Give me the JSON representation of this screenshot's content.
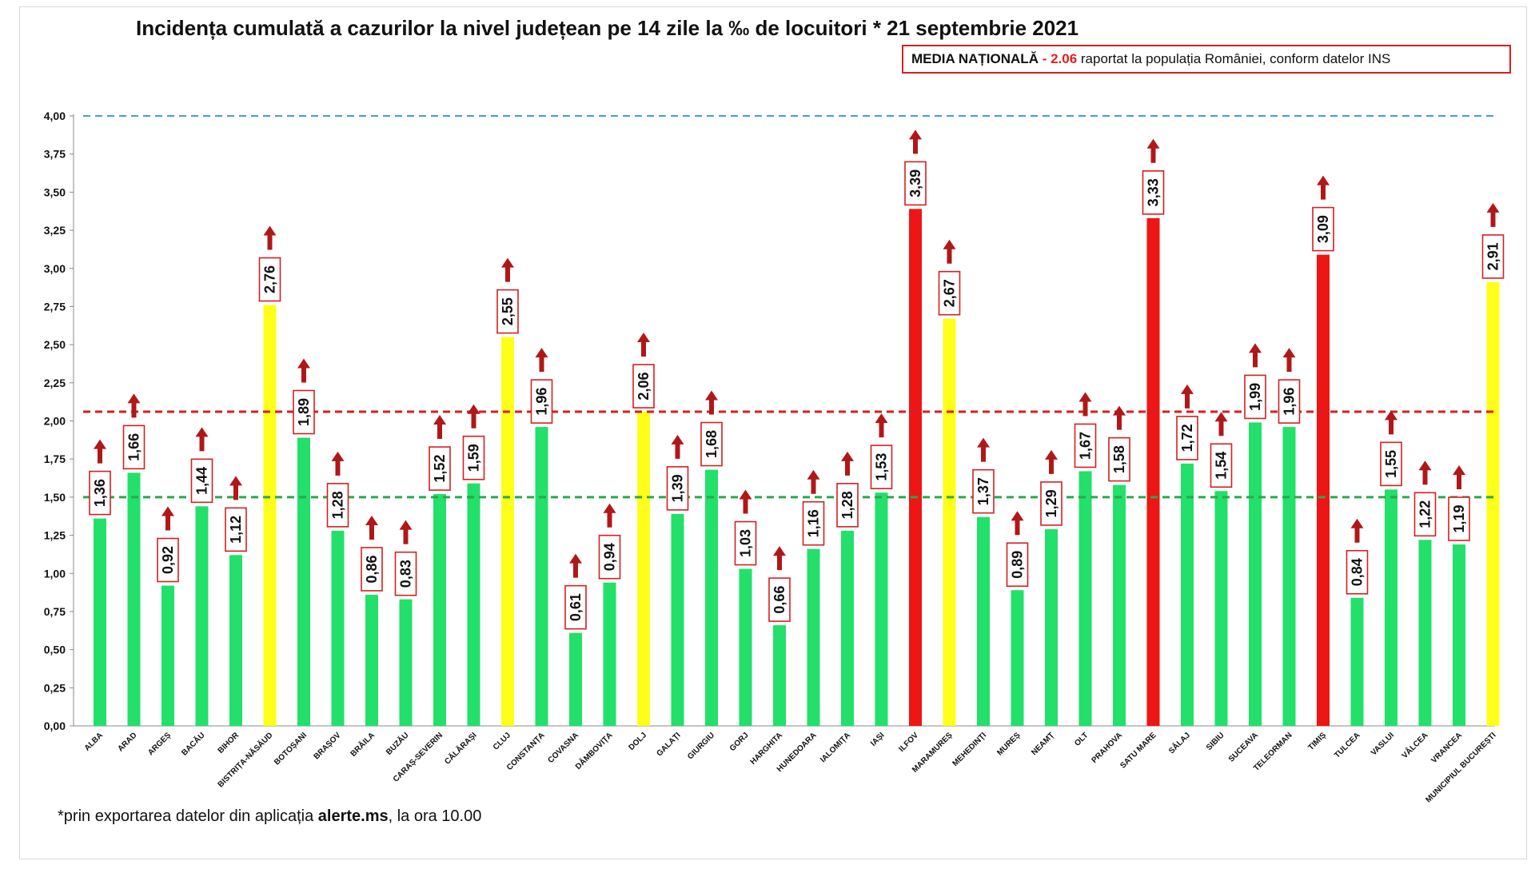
{
  "header": {
    "title": "Incidența cumulată a cazurilor la nivel județean pe 14 zile la ‰ de locuitori * 21 septembrie 2021"
  },
  "media": {
    "label": "MEDIA NAȚIONALĂ",
    "dash": " - ",
    "value": "2.06",
    "note": " raportat la populația României, conform datelor INS"
  },
  "footnote": {
    "text_before": "*prin exportarea datelor din aplicația ",
    "app": "alerte.ms",
    "text_after": ", la ora 10.00"
  },
  "colors": {
    "green": "#22e06a",
    "yellow": "#ffff19",
    "red": "#ee1515",
    "arrow": "#b01818",
    "label_border": "#d42020",
    "line_blue": "#4a9ad8",
    "line_red": "#d42020",
    "line_green": "#2aa84a"
  },
  "chart_data": {
    "type": "bar",
    "title": "Incidența cumulată a cazurilor la nivel județean pe 14 zile la ‰ de locuitori * 21 septembrie 2021",
    "ylim": [
      0,
      4
    ],
    "yticks": [
      "0,00",
      "0,25",
      "0,50",
      "0,75",
      "1,00",
      "1,25",
      "1,50",
      "1,75",
      "2,00",
      "2,25",
      "2,50",
      "2,75",
      "3,00",
      "3,25",
      "3,50",
      "3,75",
      "4,00"
    ],
    "reference_lines": [
      {
        "value": 4.0,
        "color": "blue",
        "style": "dashed"
      },
      {
        "value": 2.06,
        "color": "red",
        "style": "dashed"
      },
      {
        "value": 1.5,
        "color": "green",
        "style": "dashed"
      }
    ],
    "categories": [
      "ALBA",
      "ARAD",
      "ARGEȘ",
      "BACĂU",
      "BIHOR",
      "BISTRIȚA-NĂSĂUD",
      "BOTOȘANI",
      "BRAȘOV",
      "BRĂILA",
      "BUZĂU",
      "CARAȘ-SEVERIN",
      "CĂLĂRAȘI",
      "CLUJ",
      "CONSTANȚA",
      "COVASNA",
      "DÂMBOVIȚA",
      "DOLJ",
      "GALAȚI",
      "GIURGIU",
      "GORJ",
      "HARGHITA",
      "HUNEDOARA",
      "IALOMIȚA",
      "IAȘI",
      "ILFOV",
      "MARAMUREȘ",
      "MEHEDINȚI",
      "MUREȘ",
      "NEAMȚ",
      "OLT",
      "PRAHOVA",
      "SATU MARE",
      "SĂLAJ",
      "SIBIU",
      "SUCEAVA",
      "TELEORMAN",
      "TIMIȘ",
      "TULCEA",
      "VASLUI",
      "VÂLCEA",
      "VRANCEA",
      "MUNICIPIUL BUCUREȘTI"
    ],
    "values": [
      1.36,
      1.66,
      0.92,
      1.44,
      1.12,
      2.76,
      1.89,
      1.28,
      0.86,
      0.83,
      1.52,
      1.59,
      2.55,
      1.96,
      0.61,
      0.94,
      2.06,
      1.39,
      1.68,
      1.03,
      0.66,
      1.16,
      1.28,
      1.53,
      3.39,
      2.67,
      1.37,
      0.89,
      1.29,
      1.67,
      1.58,
      3.33,
      1.72,
      1.54,
      1.99,
      1.96,
      3.09,
      0.84,
      1.55,
      1.22,
      1.19,
      2.91
    ],
    "labels": [
      "1,36",
      "1,66",
      "0,92",
      "1,44",
      "1,12",
      "2,76",
      "1,89",
      "1,28",
      "0,86",
      "0,83",
      "1,52",
      "1,59",
      "2,55",
      "1,96",
      "0,61",
      "0,94",
      "2,06",
      "1,39",
      "1,68",
      "1,03",
      "0,66",
      "1,16",
      "1,28",
      "1,53",
      "3,39",
      "2,67",
      "1,37",
      "0,89",
      "1,29",
      "1,67",
      "1,58",
      "3,33",
      "1,72",
      "1,54",
      "1,99",
      "1,96",
      "3,09",
      "0,84",
      "1,55",
      "1,22",
      "1,19",
      "2,91"
    ],
    "bar_colors": [
      "green",
      "green",
      "green",
      "green",
      "green",
      "yellow",
      "green",
      "green",
      "green",
      "green",
      "green",
      "green",
      "yellow",
      "green",
      "green",
      "green",
      "yellow",
      "green",
      "green",
      "green",
      "green",
      "green",
      "green",
      "green",
      "red",
      "yellow",
      "green",
      "green",
      "green",
      "green",
      "green",
      "red",
      "green",
      "green",
      "green",
      "green",
      "red",
      "green",
      "green",
      "green",
      "green",
      "yellow"
    ],
    "trend": "up",
    "legend": "none",
    "grid": false
  }
}
